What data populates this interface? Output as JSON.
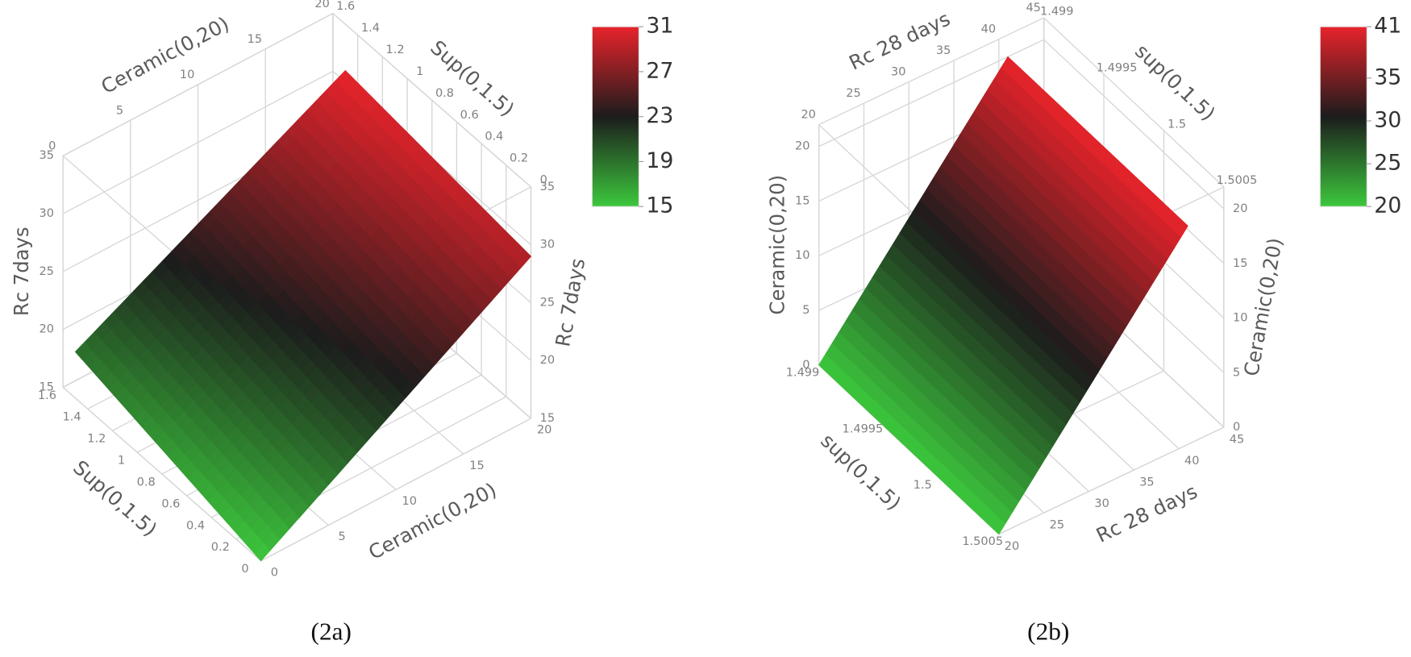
{
  "chart_data": [
    {
      "type": "surface",
      "caption": "(2a)",
      "x_label": "Ceramic(0,20)",
      "y_label": "Sup(0,1.5)",
      "z_label": "Rc 7days",
      "xlim": [
        0,
        20
      ],
      "xticks": [
        0,
        5,
        10,
        15,
        20
      ],
      "ylim": [
        0,
        1.6
      ],
      "yticks": [
        0,
        0.2,
        0.4,
        0.6,
        0.8,
        1,
        1.2,
        1.4,
        1.6
      ],
      "zlim": [
        15,
        35
      ],
      "zticks": [
        15,
        20,
        25,
        30,
        35
      ],
      "x": [
        0,
        20
      ],
      "y": [
        0,
        1.5
      ],
      "z": [
        [
          15,
          29
        ],
        [
          19,
          31
        ]
      ],
      "color_values": [
        [
          15,
          29
        ],
        [
          19,
          31
        ]
      ],
      "clim": [
        15,
        31
      ],
      "cticks": [
        15,
        19,
        23,
        27,
        31
      ],
      "colorscale": [
        "#3cc83c",
        "#1c1c1c",
        "#e8232b"
      ]
    },
    {
      "type": "surface",
      "caption": "(2b)",
      "x_label": "Rc 28 days",
      "y_label": "sup(0,1.5)",
      "z_label": "Ceramic(0,20)",
      "xlim": [
        20,
        45
      ],
      "xticks": [
        20,
        25,
        30,
        35,
        40,
        45
      ],
      "ylim": [
        1.499,
        1.5005
      ],
      "yticks": [
        1.499,
        1.4995,
        1.5,
        1.5005
      ],
      "zlim": [
        0,
        22
      ],
      "zticks": [
        0,
        5,
        10,
        15,
        20
      ],
      "x": [
        20,
        41
      ],
      "y": [
        1.499,
        1.5005
      ],
      "z": [
        [
          0,
          20
        ],
        [
          0,
          20
        ]
      ],
      "color_values": [
        [
          20,
          41
        ],
        [
          20,
          41
        ]
      ],
      "clim": [
        20,
        41
      ],
      "cticks": [
        20,
        25,
        30,
        35,
        41
      ],
      "colorscale": [
        "#3cc83c",
        "#1c1c1c",
        "#e8232b"
      ]
    }
  ]
}
